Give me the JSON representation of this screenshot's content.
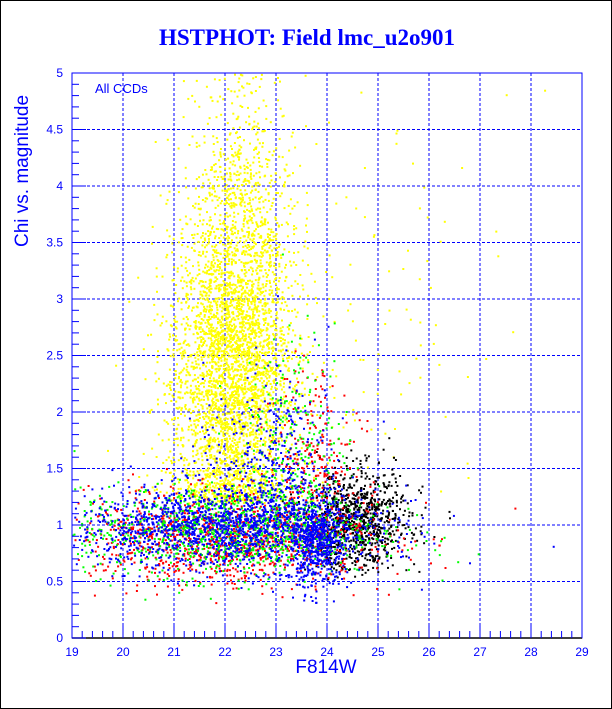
{
  "chart_data": {
    "type": "scatter",
    "title": "HSTPHOT: Field lmc_u2o901",
    "xlabel": "F814W",
    "ylabel": "Chi vs. magnitude",
    "annotation": "All CCDs",
    "xlim": [
      19,
      29
    ],
    "ylim": [
      0,
      5
    ],
    "xticks": [
      "19",
      "20",
      "21",
      "22",
      "23",
      "24",
      "25",
      "26",
      "27",
      "28",
      "29"
    ],
    "yticks": [
      "0",
      "0.5",
      "1",
      "1.5",
      "2",
      "2.5",
      "3",
      "3.5",
      "4",
      "4.5",
      "5"
    ],
    "grid": true,
    "legend": "none",
    "series": [
      {
        "name": "yellow",
        "color": "#ffff00",
        "clusters": [
          {
            "n": 3200,
            "x_mean": 22.1,
            "x_sd": 0.6,
            "y_mean": 2.3,
            "y_sd": 0.75,
            "y_min": 1.2
          },
          {
            "n": 900,
            "x_mean": 22.3,
            "x_sd": 0.5,
            "y_mean": 3.6,
            "y_sd": 0.7,
            "y_min": 2.5
          },
          {
            "n": 120,
            "x_mean": 24.5,
            "x_sd": 1.5,
            "y_mean": 2.8,
            "y_sd": 1.0,
            "y_min": 1.3
          }
        ]
      },
      {
        "name": "black",
        "color": "#000000",
        "clusters": [
          {
            "n": 900,
            "x_mean": 24.6,
            "x_sd": 0.5,
            "y_mean": 1.05,
            "y_sd": 0.22,
            "y_min": 0.5
          }
        ]
      },
      {
        "name": "red",
        "color": "#ff0000",
        "clusters": [
          {
            "n": 1100,
            "x_mean": 22.0,
            "x_sd": 1.5,
            "y_mean": 0.9,
            "y_sd": 0.2,
            "y_min": 0.25
          },
          {
            "n": 250,
            "x_mean": 23.7,
            "x_sd": 0.4,
            "y_mean": 1.6,
            "y_sd": 0.4,
            "y_min": 0.8
          }
        ]
      },
      {
        "name": "green",
        "color": "#00ff00",
        "clusters": [
          {
            "n": 1100,
            "x_mean": 22.0,
            "x_sd": 1.5,
            "y_mean": 0.95,
            "y_sd": 0.2,
            "y_min": 0.25
          },
          {
            "n": 250,
            "x_mean": 23.4,
            "x_sd": 0.5,
            "y_mean": 1.7,
            "y_sd": 0.45,
            "y_min": 0.8
          }
        ]
      },
      {
        "name": "blue",
        "color": "#0000ff",
        "clusters": [
          {
            "n": 1500,
            "x_mean": 22.0,
            "x_sd": 1.5,
            "y_mean": 0.98,
            "y_sd": 0.18,
            "y_min": 0.25
          },
          {
            "n": 500,
            "x_mean": 23.8,
            "x_sd": 0.3,
            "y_mean": 0.85,
            "y_sd": 0.2,
            "y_min": 0.3
          },
          {
            "n": 300,
            "x_mean": 22.8,
            "x_sd": 0.6,
            "y_mean": 1.6,
            "y_sd": 0.4,
            "y_min": 1.0
          }
        ]
      }
    ]
  }
}
